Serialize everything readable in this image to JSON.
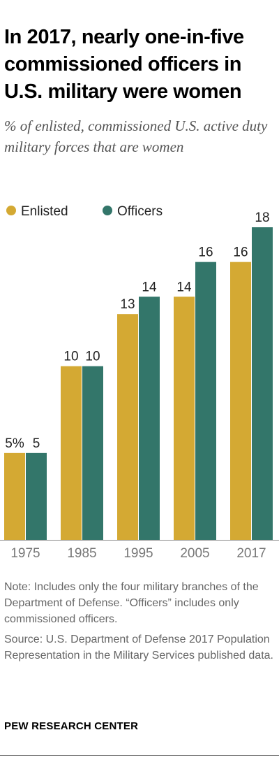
{
  "title": "In 2017, nearly one-in-five commissioned officers in U.S. military were women",
  "subtitle": "% of enlisted, commissioned U.S. active duty military forces that are women",
  "note": "Note: Includes only the four military branches of the Department of Defense. “Officers” includes only commissioned officers.",
  "source": "Source: U.S. Department of Defense 2017 Population Representation in the Military Services published data.",
  "brand": "PEW RESEARCH CENTER",
  "chart_data": {
    "type": "bar",
    "categories": [
      "1975",
      "1985",
      "1995",
      "2005",
      "2017"
    ],
    "series": [
      {
        "name": "Enlisted",
        "color": "#d4a933",
        "values": [
          5,
          10,
          13,
          14,
          16
        ],
        "labels": [
          "5%",
          "10",
          "13",
          "14",
          "16"
        ]
      },
      {
        "name": "Officers",
        "color": "#33766a",
        "values": [
          5,
          10,
          14,
          16,
          18
        ],
        "labels": [
          "5",
          "10",
          "14",
          "16",
          "18"
        ]
      }
    ],
    "ylim": [
      0,
      18
    ],
    "grid": false,
    "legend_position": "top-left"
  }
}
